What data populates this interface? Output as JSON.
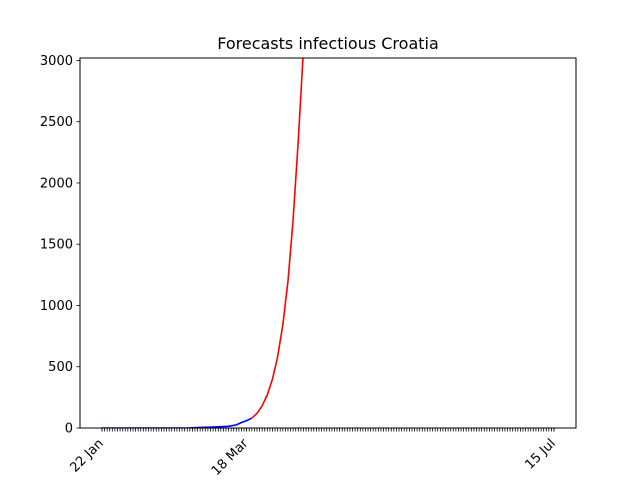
{
  "chart_data": {
    "type": "line",
    "title": "Forecasts infectious Croatia",
    "xlabel": "",
    "ylabel": "",
    "x_range": [
      "2020-01-22",
      "2020-07-15"
    ],
    "ylim": [
      0,
      3020
    ],
    "y_ticks": [
      0,
      500,
      1000,
      1500,
      2000,
      2500,
      3000
    ],
    "x_tick_labels": [
      {
        "date": "2020-01-22",
        "label": "22 Jan"
      },
      {
        "date": "2020-03-18",
        "label": "18 Mar"
      },
      {
        "date": "2020-07-15",
        "label": "15 Jul"
      }
    ],
    "minor_ticks": "daily",
    "grid": false,
    "legend": "none",
    "series": [
      {
        "color": "#0000ff",
        "style": "observed",
        "points": [
          [
            "2020-01-22",
            0
          ],
          [
            "2020-01-29",
            0
          ],
          [
            "2020-02-05",
            0
          ],
          [
            "2020-02-12",
            0
          ],
          [
            "2020-02-19",
            0
          ],
          [
            "2020-02-25",
            1
          ],
          [
            "2020-02-28",
            3
          ],
          [
            "2020-03-02",
            6
          ],
          [
            "2020-03-05",
            8
          ],
          [
            "2020-03-08",
            11
          ],
          [
            "2020-03-11",
            14
          ],
          [
            "2020-03-14",
            25
          ],
          [
            "2020-03-16",
            45
          ],
          [
            "2020-03-18",
            60
          ],
          [
            "2020-03-20",
            80
          ]
        ]
      },
      {
        "color": "#ff0000",
        "style": "forecast",
        "points": [
          [
            "2020-03-20",
            80
          ],
          [
            "2020-03-22",
            120
          ],
          [
            "2020-03-24",
            180
          ],
          [
            "2020-03-26",
            270
          ],
          [
            "2020-03-28",
            400
          ],
          [
            "2020-03-30",
            580
          ],
          [
            "2020-04-01",
            840
          ],
          [
            "2020-04-03",
            1200
          ],
          [
            "2020-04-05",
            1700
          ],
          [
            "2020-04-07",
            2350
          ],
          [
            "2020-04-09",
            3100
          ]
        ]
      }
    ]
  }
}
